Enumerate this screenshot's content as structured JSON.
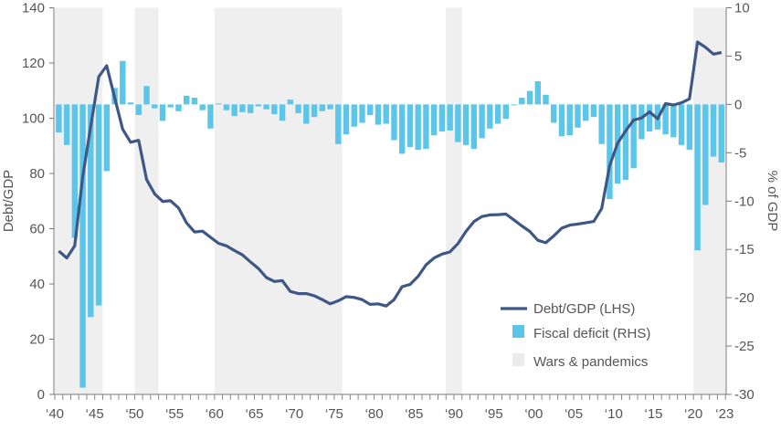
{
  "chart_data": {
    "type": "bar+line",
    "title": "",
    "xlabel": "",
    "ylabel_left": "Debt/GDP",
    "ylabel_right": "% of GDP",
    "ylim_left": [
      0,
      140
    ],
    "ylim_right": [
      -30,
      10
    ],
    "xlim": [
      1940,
      2023
    ],
    "yticks_left": [
      "0",
      "20",
      "40",
      "60",
      "80",
      "100",
      "120",
      "140"
    ],
    "yticks_right": [
      "-30",
      "-25",
      "-20",
      "-15",
      "-10",
      "-5",
      "0",
      "5",
      "10"
    ],
    "xtick_labels": [
      "‘40",
      "‘45",
      "‘50",
      "‘55",
      "‘60",
      "‘65",
      "‘70",
      "‘75",
      "‘80",
      "‘85",
      "‘90",
      "‘95",
      "‘00",
      "‘05",
      "‘10",
      "‘15",
      "‘20",
      "‘23"
    ],
    "xtick_years": [
      1940,
      1945,
      1950,
      1955,
      1960,
      1965,
      1970,
      1975,
      1980,
      1985,
      1990,
      1995,
      2000,
      2005,
      2010,
      2015,
      2020,
      2023
    ],
    "years_start": 1940,
    "series": [
      {
        "name": "Debt/GDP (LHS)",
        "type": "line",
        "axis": "left",
        "color": "#3f5785",
        "values": [
          51.9,
          49.4,
          53.8,
          79,
          97,
          115,
          119,
          107.5,
          96,
          91.3,
          92,
          77.8,
          72.6,
          69.9,
          70.1,
          67.5,
          62.1,
          58.8,
          59.1,
          56.9,
          54.7,
          53.8,
          52.1,
          50.5,
          48,
          45.6,
          42.3,
          40.9,
          41.2,
          37.3,
          36.5,
          36.5,
          35.7,
          34.3,
          32.8,
          33.9,
          35.4,
          35.1,
          34.3,
          32.6,
          32.8,
          32,
          34.3,
          39,
          39.8,
          42.7,
          46.9,
          49.4,
          50.8,
          51.6,
          54.6,
          59,
          62.6,
          64.4,
          65,
          65.1,
          65.3,
          63.2,
          61,
          59,
          55.8,
          54.9,
          57.4,
          60.2,
          61.3,
          61.7,
          62.1,
          62.6,
          67.3,
          82.8,
          91,
          95.4,
          99.3,
          100.1,
          102.3,
          99.8,
          105.3,
          104.8,
          105.6,
          107,
          127.6,
          125.7,
          123.2,
          123.8
        ]
      },
      {
        "name": "Fiscal deficit (RHS)",
        "type": "bar",
        "axis": "right",
        "color": "#5bc5ea",
        "values": [
          -2.9,
          -4.2,
          -13.8,
          -29.3,
          -22,
          -20.8,
          -6.9,
          1.7,
          4.5,
          0.2,
          -1.1,
          1.9,
          -0.4,
          -1.7,
          -0.3,
          -0.7,
          0.9,
          0.7,
          -0.6,
          -2.5,
          0.1,
          -0.6,
          -1.2,
          -0.8,
          -0.9,
          -0.2,
          -0.5,
          -1.0,
          -1.7,
          0.5,
          -0.9,
          -2.0,
          -1.3,
          -0.7,
          -0.5,
          -4.1,
          -3.1,
          -2.3,
          -1.9,
          -1.1,
          -2.1,
          -2.0,
          -3.7,
          -5.1,
          -4.4,
          -4.7,
          -4.6,
          -3.2,
          -2.8,
          -2.7,
          -3.9,
          -4.2,
          -4.6,
          -3.5,
          -2.5,
          -2.0,
          -1.5,
          -0.1,
          0.7,
          1.4,
          2.4,
          1.0,
          -1.9,
          -3.3,
          -3.2,
          -2.4,
          -1.7,
          -1.3,
          -4.1,
          -9.8,
          -8.2,
          -7.8,
          -6.6,
          -3.6,
          -2.8,
          -2.6,
          -3.1,
          -3.4,
          -4.2,
          -4.7,
          -15.1,
          -10.4,
          -5.4,
          -6.0
        ]
      }
    ],
    "shaded_periods": {
      "name": "Wars & pandemics",
      "color": "#efefef",
      "ranges": [
        [
          1940,
          1946
        ],
        [
          1950,
          1953
        ],
        [
          1960,
          1976
        ],
        [
          1989,
          1991
        ],
        [
          2020,
          2024
        ]
      ]
    },
    "legend": {
      "placement": "bottom-center-right",
      "items": [
        "Debt/GDP (LHS)",
        "Fiscal deficit (RHS)",
        "Wars & pandemics"
      ]
    },
    "grid": false
  }
}
